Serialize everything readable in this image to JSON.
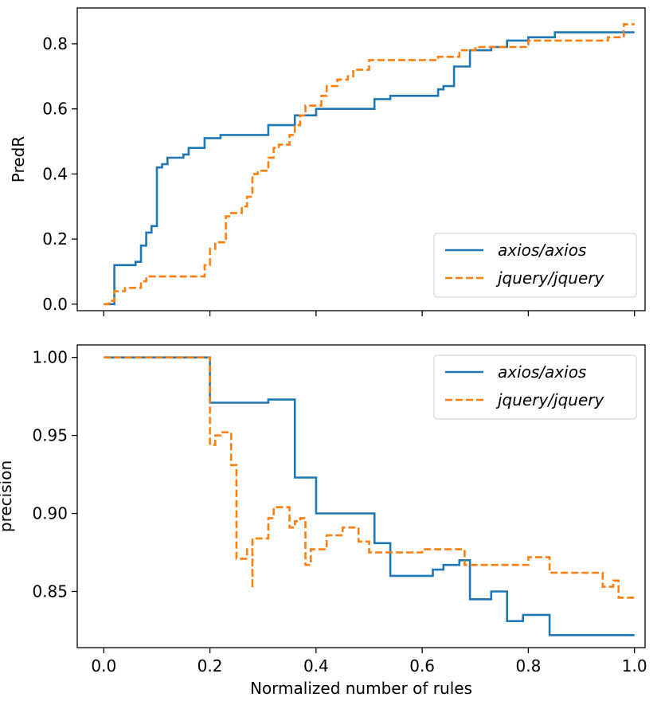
{
  "chart_data": [
    {
      "type": "line",
      "ylabel": "PredR",
      "xlabel": "",
      "xlim": [
        -0.05,
        1.02
      ],
      "ylim": [
        -0.02,
        0.91
      ],
      "xticks": [
        0.0,
        0.2,
        0.4,
        0.6,
        0.8,
        1.0
      ],
      "yticks": [
        0.0,
        0.2,
        0.4,
        0.6,
        0.8
      ],
      "xtick_labels": [
        "",
        "",
        "",
        "",
        "",
        ""
      ],
      "ytick_labels": [
        "0.0",
        "0.2",
        "0.4",
        "0.6",
        "0.8"
      ],
      "legend": "bottom-right",
      "series": [
        {
          "name": "axios/axios",
          "color": "#1f77b4",
          "dash": "solid",
          "points": [
            [
              0.0,
              0.0
            ],
            [
              0.02,
              0.0
            ],
            [
              0.02,
              0.12
            ],
            [
              0.06,
              0.12
            ],
            [
              0.06,
              0.13
            ],
            [
              0.07,
              0.13
            ],
            [
              0.07,
              0.18
            ],
            [
              0.08,
              0.18
            ],
            [
              0.08,
              0.22
            ],
            [
              0.09,
              0.22
            ],
            [
              0.09,
              0.24
            ],
            [
              0.1,
              0.24
            ],
            [
              0.1,
              0.42
            ],
            [
              0.11,
              0.42
            ],
            [
              0.11,
              0.43
            ],
            [
              0.12,
              0.43
            ],
            [
              0.12,
              0.45
            ],
            [
              0.15,
              0.45
            ],
            [
              0.15,
              0.46
            ],
            [
              0.16,
              0.46
            ],
            [
              0.16,
              0.48
            ],
            [
              0.19,
              0.48
            ],
            [
              0.19,
              0.51
            ],
            [
              0.22,
              0.51
            ],
            [
              0.22,
              0.52
            ],
            [
              0.31,
              0.52
            ],
            [
              0.31,
              0.55
            ],
            [
              0.36,
              0.55
            ],
            [
              0.36,
              0.58
            ],
            [
              0.4,
              0.58
            ],
            [
              0.4,
              0.6
            ],
            [
              0.51,
              0.6
            ],
            [
              0.51,
              0.63
            ],
            [
              0.54,
              0.63
            ],
            [
              0.54,
              0.64
            ],
            [
              0.63,
              0.64
            ],
            [
              0.63,
              0.66
            ],
            [
              0.64,
              0.66
            ],
            [
              0.64,
              0.67
            ],
            [
              0.66,
              0.67
            ],
            [
              0.66,
              0.73
            ],
            [
              0.69,
              0.73
            ],
            [
              0.69,
              0.78
            ],
            [
              0.73,
              0.78
            ],
            [
              0.73,
              0.79
            ],
            [
              0.76,
              0.79
            ],
            [
              0.76,
              0.81
            ],
            [
              0.8,
              0.81
            ],
            [
              0.8,
              0.82
            ],
            [
              0.85,
              0.82
            ],
            [
              0.85,
              0.835
            ],
            [
              1.0,
              0.835
            ]
          ]
        },
        {
          "name": "jquery/jquery",
          "color": "#ff7f0e",
          "dash": "dashed",
          "points": [
            [
              0.0,
              0.0
            ],
            [
              0.01,
              0.0
            ],
            [
              0.01,
              0.01
            ],
            [
              0.02,
              0.01
            ],
            [
              0.02,
              0.04
            ],
            [
              0.04,
              0.04
            ],
            [
              0.04,
              0.05
            ],
            [
              0.07,
              0.05
            ],
            [
              0.07,
              0.07
            ],
            [
              0.08,
              0.07
            ],
            [
              0.08,
              0.085
            ],
            [
              0.19,
              0.085
            ],
            [
              0.19,
              0.12
            ],
            [
              0.2,
              0.12
            ],
            [
              0.2,
              0.17
            ],
            [
              0.21,
              0.17
            ],
            [
              0.21,
              0.19
            ],
            [
              0.23,
              0.19
            ],
            [
              0.23,
              0.27
            ],
            [
              0.24,
              0.27
            ],
            [
              0.24,
              0.28
            ],
            [
              0.26,
              0.28
            ],
            [
              0.26,
              0.3
            ],
            [
              0.27,
              0.3
            ],
            [
              0.27,
              0.33
            ],
            [
              0.28,
              0.33
            ],
            [
              0.28,
              0.4
            ],
            [
              0.29,
              0.4
            ],
            [
              0.29,
              0.41
            ],
            [
              0.31,
              0.41
            ],
            [
              0.31,
              0.45
            ],
            [
              0.32,
              0.45
            ],
            [
              0.32,
              0.48
            ],
            [
              0.33,
              0.48
            ],
            [
              0.33,
              0.49
            ],
            [
              0.35,
              0.49
            ],
            [
              0.35,
              0.52
            ],
            [
              0.36,
              0.52
            ],
            [
              0.36,
              0.55
            ],
            [
              0.37,
              0.55
            ],
            [
              0.37,
              0.58
            ],
            [
              0.38,
              0.58
            ],
            [
              0.38,
              0.61
            ],
            [
              0.41,
              0.61
            ],
            [
              0.41,
              0.64
            ],
            [
              0.42,
              0.64
            ],
            [
              0.42,
              0.67
            ],
            [
              0.44,
              0.67
            ],
            [
              0.44,
              0.69
            ],
            [
              0.46,
              0.69
            ],
            [
              0.46,
              0.7
            ],
            [
              0.47,
              0.7
            ],
            [
              0.47,
              0.72
            ],
            [
              0.5,
              0.72
            ],
            [
              0.5,
              0.75
            ],
            [
              0.63,
              0.75
            ],
            [
              0.63,
              0.76
            ],
            [
              0.67,
              0.76
            ],
            [
              0.67,
              0.78
            ],
            [
              0.7,
              0.78
            ],
            [
              0.7,
              0.79
            ],
            [
              0.8,
              0.79
            ],
            [
              0.8,
              0.81
            ],
            [
              0.95,
              0.81
            ],
            [
              0.95,
              0.82
            ],
            [
              0.98,
              0.82
            ],
            [
              0.98,
              0.86
            ],
            [
              1.0,
              0.86
            ]
          ]
        }
      ]
    },
    {
      "type": "line",
      "ylabel": "precision",
      "xlabel": "Normalized number of rules",
      "xlim": [
        -0.05,
        1.02
      ],
      "ylim": [
        0.814,
        1.008
      ],
      "xticks": [
        0.0,
        0.2,
        0.4,
        0.6,
        0.8,
        1.0
      ],
      "yticks": [
        0.85,
        0.9,
        0.95,
        1.0
      ],
      "xtick_labels": [
        "0.0",
        "0.2",
        "0.4",
        "0.6",
        "0.8",
        "1.0"
      ],
      "ytick_labels": [
        "0.85",
        "0.90",
        "0.95",
        "1.00"
      ],
      "legend": "top-right",
      "series": [
        {
          "name": "axios/axios",
          "color": "#1f77b4",
          "dash": "solid",
          "points": [
            [
              0.0,
              1.0
            ],
            [
              0.2,
              1.0
            ],
            [
              0.2,
              0.971
            ],
            [
              0.31,
              0.971
            ],
            [
              0.31,
              0.973
            ],
            [
              0.36,
              0.973
            ],
            [
              0.36,
              0.923
            ],
            [
              0.4,
              0.923
            ],
            [
              0.4,
              0.9
            ],
            [
              0.51,
              0.9
            ],
            [
              0.51,
              0.881
            ],
            [
              0.54,
              0.881
            ],
            [
              0.54,
              0.86
            ],
            [
              0.62,
              0.86
            ],
            [
              0.62,
              0.864
            ],
            [
              0.64,
              0.864
            ],
            [
              0.64,
              0.867
            ],
            [
              0.67,
              0.867
            ],
            [
              0.67,
              0.87
            ],
            [
              0.69,
              0.87
            ],
            [
              0.69,
              0.845
            ],
            [
              0.73,
              0.845
            ],
            [
              0.73,
              0.85
            ],
            [
              0.76,
              0.85
            ],
            [
              0.76,
              0.831
            ],
            [
              0.79,
              0.831
            ],
            [
              0.79,
              0.835
            ],
            [
              0.84,
              0.835
            ],
            [
              0.84,
              0.822
            ],
            [
              1.0,
              0.822
            ]
          ]
        },
        {
          "name": "jquery/jquery",
          "color": "#ff7f0e",
          "dash": "dashed",
          "points": [
            [
              0.0,
              1.0
            ],
            [
              0.2,
              1.0
            ],
            [
              0.2,
              0.944
            ],
            [
              0.21,
              0.944
            ],
            [
              0.21,
              0.95
            ],
            [
              0.22,
              0.95
            ],
            [
              0.22,
              0.952
            ],
            [
              0.24,
              0.952
            ],
            [
              0.24,
              0.931
            ],
            [
              0.25,
              0.931
            ],
            [
              0.25,
              0.871
            ],
            [
              0.27,
              0.871
            ],
            [
              0.27,
              0.877
            ],
            [
              0.28,
              0.877
            ],
            [
              0.28,
              0.852
            ],
            [
              0.28,
              0.884
            ],
            [
              0.31,
              0.884
            ],
            [
              0.31,
              0.897
            ],
            [
              0.32,
              0.897
            ],
            [
              0.32,
              0.904
            ],
            [
              0.35,
              0.904
            ],
            [
              0.35,
              0.891
            ],
            [
              0.36,
              0.891
            ],
            [
              0.36,
              0.895
            ],
            [
              0.37,
              0.895
            ],
            [
              0.37,
              0.897
            ],
            [
              0.38,
              0.897
            ],
            [
              0.38,
              0.867
            ],
            [
              0.39,
              0.867
            ],
            [
              0.39,
              0.877
            ],
            [
              0.42,
              0.877
            ],
            [
              0.42,
              0.886
            ],
            [
              0.45,
              0.886
            ],
            [
              0.45,
              0.891
            ],
            [
              0.48,
              0.891
            ],
            [
              0.48,
              0.882
            ],
            [
              0.5,
              0.882
            ],
            [
              0.5,
              0.875
            ],
            [
              0.6,
              0.875
            ],
            [
              0.6,
              0.877
            ],
            [
              0.68,
              0.877
            ],
            [
              0.68,
              0.867
            ],
            [
              0.8,
              0.867
            ],
            [
              0.8,
              0.872
            ],
            [
              0.84,
              0.872
            ],
            [
              0.84,
              0.862
            ],
            [
              0.94,
              0.862
            ],
            [
              0.94,
              0.853
            ],
            [
              0.96,
              0.853
            ],
            [
              0.96,
              0.857
            ],
            [
              0.97,
              0.857
            ],
            [
              0.97,
              0.846
            ],
            [
              1.0,
              0.846
            ]
          ]
        }
      ]
    }
  ]
}
